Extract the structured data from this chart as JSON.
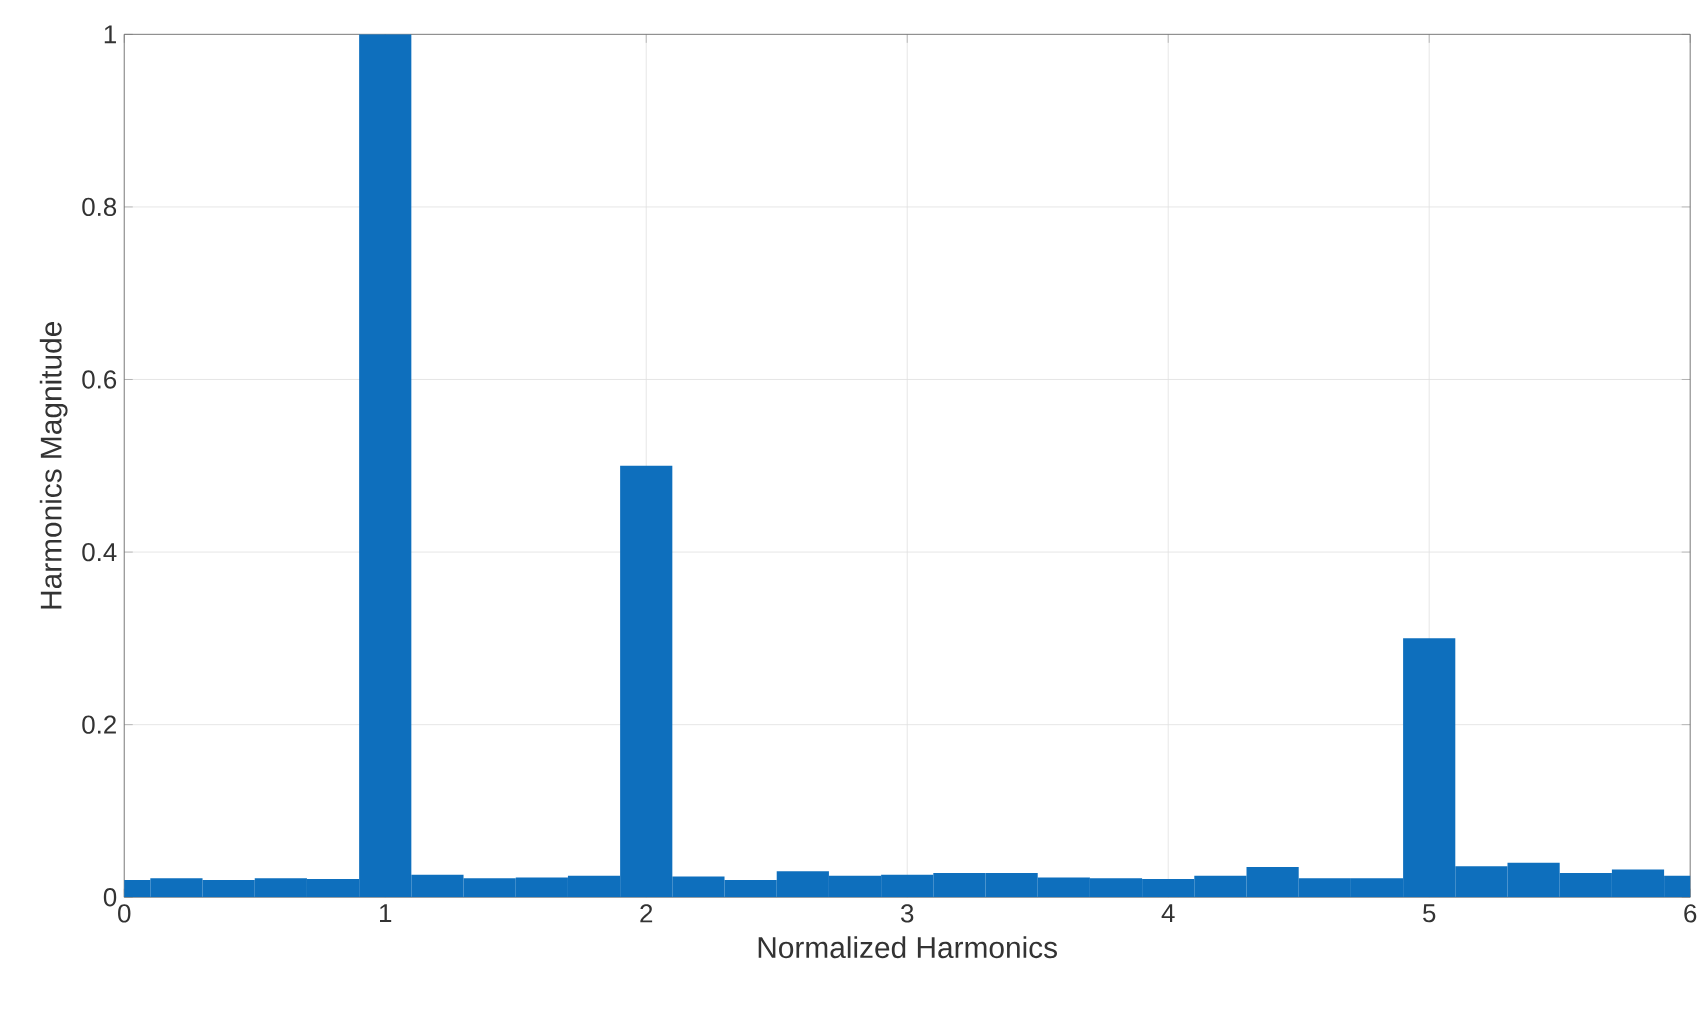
{
  "chart_data": {
    "type": "bar",
    "xlabel": "Normalized Harmonics",
    "ylabel": "Harmonics Magnitude",
    "color": "#0e6fbd",
    "x": [
      0,
      0.2,
      0.4,
      0.6,
      0.8,
      1,
      1.2,
      1.4,
      1.6,
      1.8,
      2,
      2.2,
      2.4,
      2.6,
      2.8,
      3,
      3.2,
      3.4,
      3.6,
      3.8,
      4,
      4.2,
      4.4,
      4.6,
      4.8,
      5,
      5.2,
      5.4,
      5.6,
      5.8,
      6
    ],
    "values": [
      0.02,
      0.022,
      0.02,
      0.022,
      0.021,
      1,
      0.026,
      0.022,
      0.023,
      0.025,
      0.5,
      0.024,
      0.02,
      0.03,
      0.025,
      0.026,
      0.028,
      0.028,
      0.023,
      0.022,
      0.021,
      0.025,
      0.035,
      0.022,
      0.022,
      0.3,
      0.036,
      0.04,
      0.028,
      0.032,
      0.025
    ],
    "xlim": [
      0,
      6
    ],
    "ylim": [
      0,
      1
    ],
    "xticks": [
      0,
      1,
      2,
      3,
      4,
      5,
      6
    ],
    "yticks": [
      0,
      0.2,
      0.4,
      0.6,
      0.8,
      1
    ],
    "grid": true
  }
}
